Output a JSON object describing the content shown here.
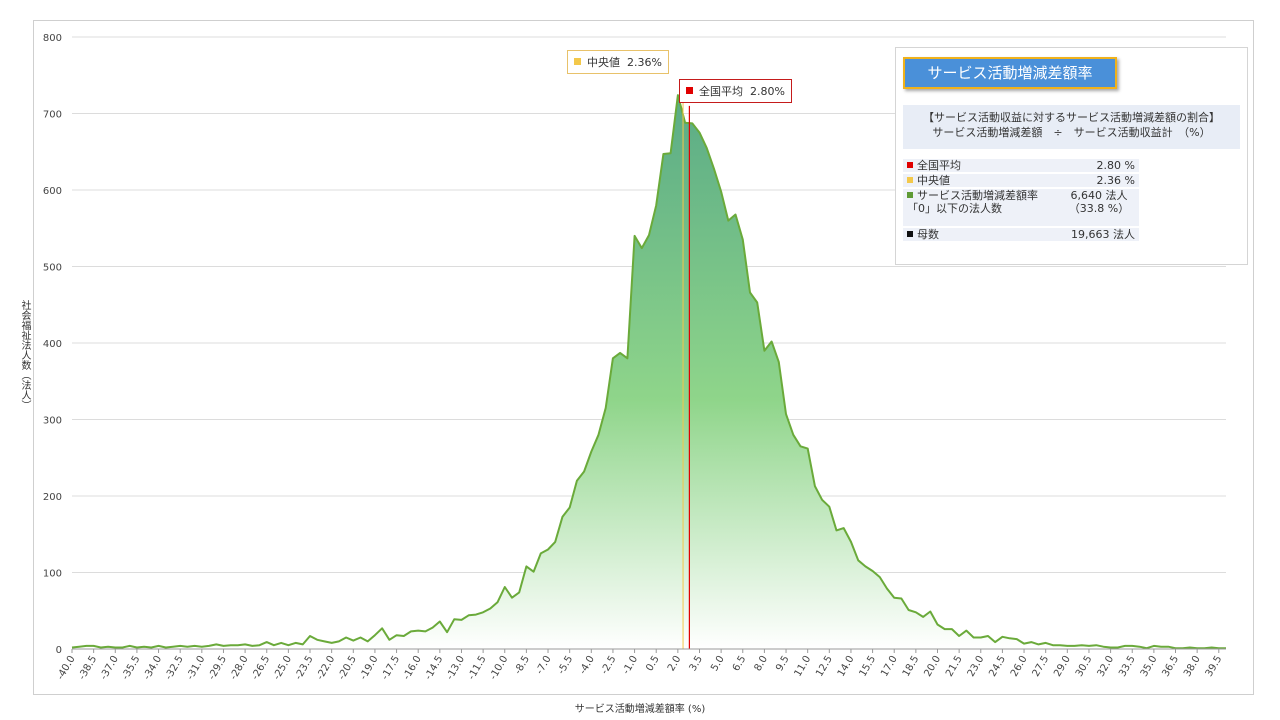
{
  "chart_data": {
    "type": "area",
    "title": "",
    "xlabel": "サービス活動増減差額率 (%)",
    "ylabel": "社会福祉法人数（法人）",
    "ylim": [
      0,
      800
    ],
    "yticks": [
      0,
      100,
      200,
      300,
      400,
      500,
      600,
      700,
      800
    ],
    "xlim": [
      -40.0,
      40.0
    ],
    "xticks": [
      "-40.0",
      "-38.5",
      "-37.0",
      "-35.5",
      "-34.0",
      "-32.5",
      "-31.0",
      "-29.5",
      "-28.0",
      "-26.5",
      "-25.0",
      "-23.5",
      "-22.0",
      "-20.5",
      "-19.0",
      "-17.5",
      "-16.0",
      "-14.5",
      "-13.0",
      "-11.5",
      "-10.0",
      "-8.5",
      "-7.0",
      "-5.5",
      "-4.0",
      "-2.5",
      "-1.0",
      "0.5",
      "2.0",
      "3.5",
      "5.0",
      "6.5",
      "8.0",
      "9.5",
      "11.0",
      "12.5",
      "14.0",
      "15.5",
      "17.0",
      "18.5",
      "20.0",
      "21.5",
      "23.0",
      "24.5",
      "26.0",
      "27.5",
      "29.0",
      "30.5",
      "32.0",
      "33.5",
      "35.0",
      "36.5",
      "38.0",
      "39.5"
    ],
    "grid": true,
    "series": [
      {
        "color": "#6aaa3a",
        "points": [
          [
            -40.0,
            2
          ],
          [
            -39.5,
            3
          ],
          [
            -39.0,
            4
          ],
          [
            -38.5,
            4
          ],
          [
            -38.0,
            2
          ],
          [
            -37.5,
            3
          ],
          [
            -37.0,
            2
          ],
          [
            -36.5,
            2
          ],
          [
            -36.0,
            4
          ],
          [
            -35.5,
            2
          ],
          [
            -35.0,
            3
          ],
          [
            -34.5,
            2
          ],
          [
            -34.0,
            4
          ],
          [
            -33.5,
            2
          ],
          [
            -33.0,
            3
          ],
          [
            -32.5,
            4
          ],
          [
            -32.0,
            3
          ],
          [
            -31.5,
            4
          ],
          [
            -31.0,
            3
          ],
          [
            -30.5,
            4
          ],
          [
            -30.0,
            6
          ],
          [
            -29.5,
            4
          ],
          [
            -29.0,
            5
          ],
          [
            -28.5,
            5
          ],
          [
            -28.0,
            6
          ],
          [
            -27.5,
            4
          ],
          [
            -27.0,
            5
          ],
          [
            -26.5,
            9
          ],
          [
            -26.0,
            5
          ],
          [
            -25.5,
            8
          ],
          [
            -25.0,
            5
          ],
          [
            -24.5,
            8
          ],
          [
            -24.0,
            6
          ],
          [
            -23.5,
            17
          ],
          [
            -23.0,
            12
          ],
          [
            -22.5,
            10
          ],
          [
            -22.0,
            8
          ],
          [
            -21.5,
            10
          ],
          [
            -21.0,
            15
          ],
          [
            -20.5,
            11
          ],
          [
            -20.0,
            15
          ],
          [
            -19.5,
            10
          ],
          [
            -19.0,
            18
          ],
          [
            -18.5,
            27
          ],
          [
            -18.0,
            12
          ],
          [
            -17.5,
            18
          ],
          [
            -17.0,
            17
          ],
          [
            -16.5,
            23
          ],
          [
            -16.0,
            24
          ],
          [
            -15.5,
            23
          ],
          [
            -15.0,
            28
          ],
          [
            -14.5,
            36
          ],
          [
            -14.0,
            22
          ],
          [
            -13.5,
            39
          ],
          [
            -13.0,
            38
          ],
          [
            -12.5,
            44
          ],
          [
            -12.0,
            45
          ],
          [
            -11.5,
            48
          ],
          [
            -11.0,
            53
          ],
          [
            -10.5,
            61
          ],
          [
            -10.0,
            81
          ],
          [
            -9.5,
            67
          ],
          [
            -9.0,
            74
          ],
          [
            -8.5,
            108
          ],
          [
            -8.0,
            101
          ],
          [
            -7.5,
            125
          ],
          [
            -7.0,
            130
          ],
          [
            -6.5,
            140
          ],
          [
            -6.0,
            173
          ],
          [
            -5.5,
            185
          ],
          [
            -5.0,
            220
          ],
          [
            -4.5,
            232
          ],
          [
            -4.0,
            258
          ],
          [
            -3.5,
            280
          ],
          [
            -3.0,
            315
          ],
          [
            -2.5,
            380
          ],
          [
            -2.0,
            387
          ],
          [
            -1.5,
            380
          ],
          [
            -1.0,
            540
          ],
          [
            -0.5,
            524
          ],
          [
            0.0,
            541
          ],
          [
            0.5,
            580
          ],
          [
            1.0,
            647
          ],
          [
            1.5,
            648
          ],
          [
            2.0,
            724
          ],
          [
            2.5,
            688
          ],
          [
            3.0,
            687
          ],
          [
            3.5,
            675
          ],
          [
            4.0,
            655
          ],
          [
            4.5,
            628
          ],
          [
            5.0,
            598
          ],
          [
            5.5,
            560
          ],
          [
            6.0,
            568
          ],
          [
            6.5,
            535
          ],
          [
            7.0,
            466
          ],
          [
            7.5,
            453
          ],
          [
            8.0,
            390
          ],
          [
            8.5,
            402
          ],
          [
            9.0,
            375
          ],
          [
            9.5,
            307
          ],
          [
            10.0,
            280
          ],
          [
            10.5,
            265
          ],
          [
            11.0,
            262
          ],
          [
            11.5,
            213
          ],
          [
            12.0,
            195
          ],
          [
            12.5,
            186
          ],
          [
            13.0,
            155
          ],
          [
            13.5,
            158
          ],
          [
            14.0,
            140
          ],
          [
            14.5,
            116
          ],
          [
            15.0,
            108
          ],
          [
            15.5,
            102
          ],
          [
            16.0,
            94
          ],
          [
            16.5,
            79
          ],
          [
            17.0,
            67
          ],
          [
            17.5,
            66
          ],
          [
            18.0,
            51
          ],
          [
            18.5,
            48
          ],
          [
            19.0,
            42
          ],
          [
            19.5,
            49
          ],
          [
            20.0,
            32
          ],
          [
            20.5,
            26
          ],
          [
            21.0,
            26
          ],
          [
            21.5,
            17
          ],
          [
            22.0,
            24
          ],
          [
            22.5,
            15
          ],
          [
            23.0,
            15
          ],
          [
            23.5,
            17
          ],
          [
            24.0,
            9
          ],
          [
            24.5,
            16
          ],
          [
            25.0,
            14
          ],
          [
            25.5,
            13
          ],
          [
            26.0,
            7
          ],
          [
            26.5,
            9
          ],
          [
            27.0,
            6
          ],
          [
            27.5,
            8
          ],
          [
            28.0,
            5
          ],
          [
            28.5,
            5
          ],
          [
            29.0,
            4
          ],
          [
            29.5,
            4
          ],
          [
            30.0,
            5
          ],
          [
            30.5,
            4
          ],
          [
            31.0,
            5
          ],
          [
            31.5,
            3
          ],
          [
            32.0,
            2
          ],
          [
            32.5,
            2
          ],
          [
            33.0,
            4
          ],
          [
            33.5,
            4
          ],
          [
            34.0,
            3
          ],
          [
            34.5,
            1
          ],
          [
            35.0,
            4
          ],
          [
            35.5,
            3
          ],
          [
            36.0,
            3
          ],
          [
            36.5,
            1
          ],
          [
            37.0,
            1
          ],
          [
            37.5,
            2
          ],
          [
            38.0,
            1
          ],
          [
            38.5,
            1
          ],
          [
            39.0,
            2
          ],
          [
            39.5,
            1
          ],
          [
            40.0,
            1
          ]
        ]
      }
    ],
    "annotations": {
      "median": {
        "value": 2.36,
        "label": "中央値",
        "text": "2.36%",
        "color": "#f3c84a"
      },
      "mean": {
        "value": 2.8,
        "label": "全国平均",
        "text": "2.80%",
        "color": "#e00000"
      }
    }
  },
  "info": {
    "title": "サービス活動増減差額率",
    "desc_line1": "【サービス活動収益に対するサービス活動増減差額の割合】",
    "desc_line2": "サービス活動増減差額　÷　サービス活動収益計　（%）",
    "rows": [
      {
        "label": "全国平均",
        "value": "2.80 %",
        "color": "#e00000"
      },
      {
        "label": "中央値",
        "value": "2.36 %",
        "color": "#f3c84a"
      },
      {
        "label": "サービス活動増減差額率「0」以下の法人数",
        "label_l1": "サービス活動増減差額率",
        "label_l2": "「0」以下の法人数",
        "value_l1": "6,640 法人",
        "value_l2": "（33.8 %）",
        "color": "#5e9a35"
      },
      {
        "label": "母数",
        "value": "19,663 法人",
        "color": "#111111"
      }
    ]
  }
}
